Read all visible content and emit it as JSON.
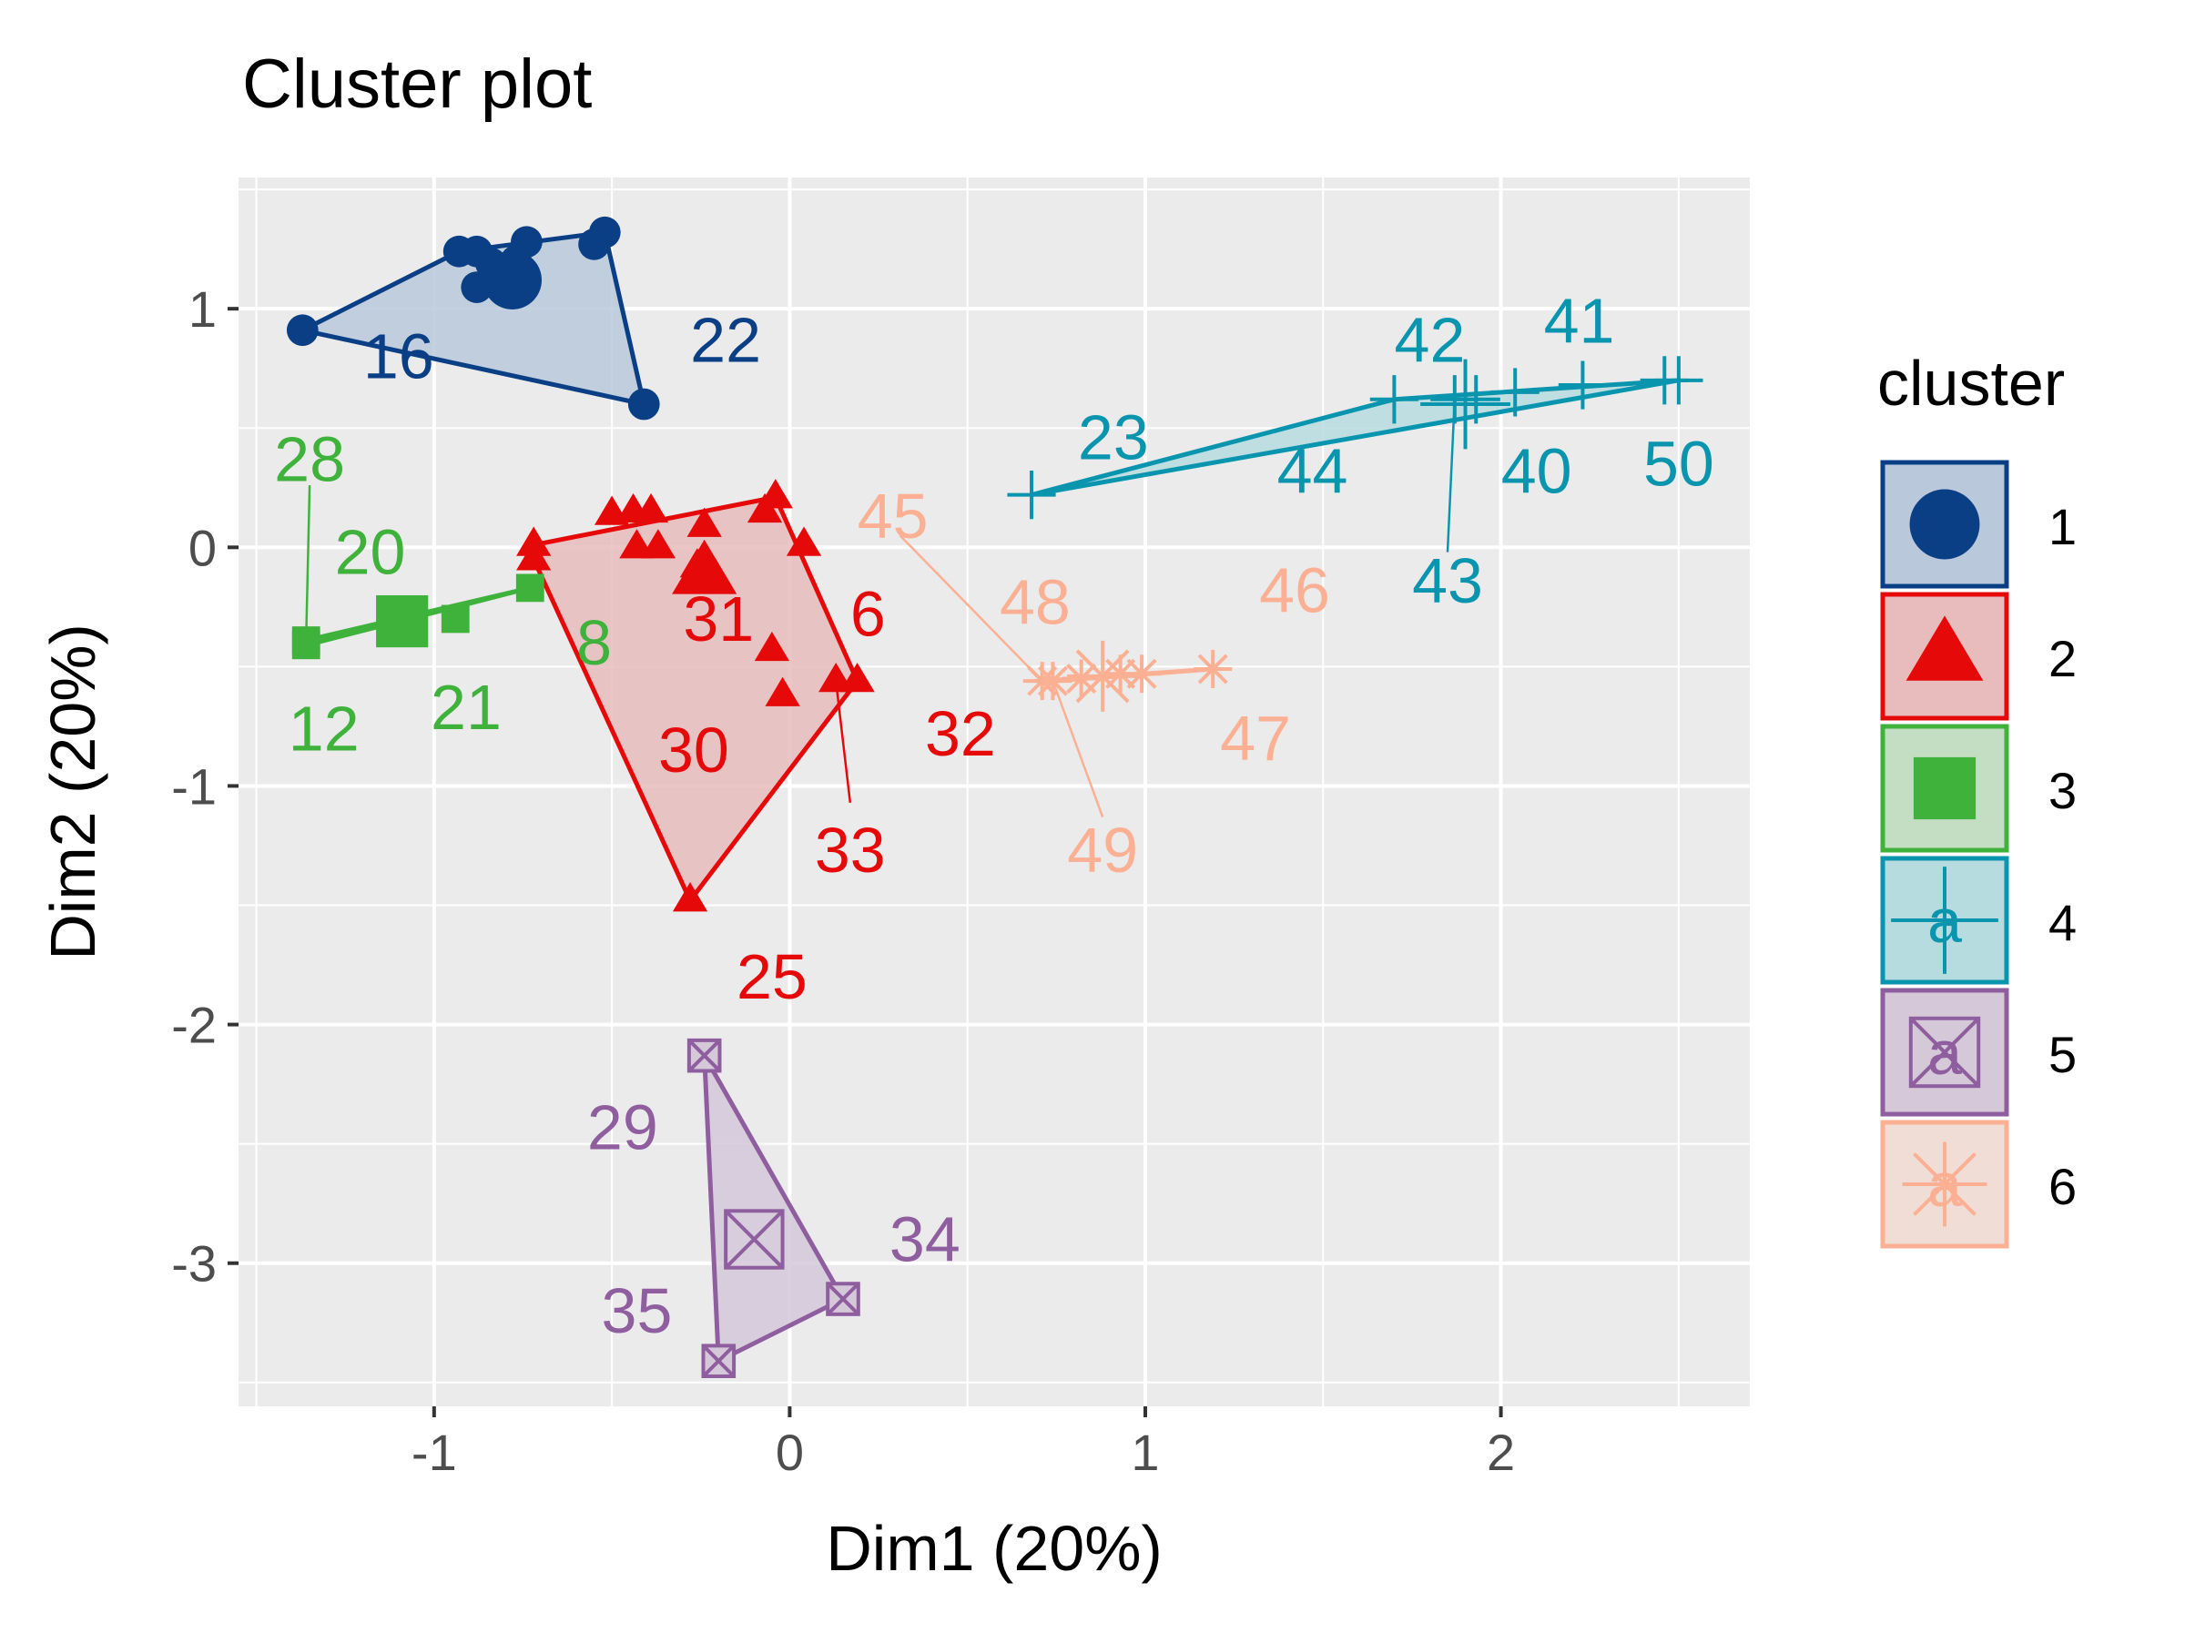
{
  "chart_data": {
    "type": "scatter",
    "title": "Cluster plot",
    "xlabel": "Dim1 (20%)",
    "ylabel": "Dim2 (20%)",
    "xlim": [
      -1.55,
      2.7
    ],
    "ylim": [
      -3.6,
      1.55
    ],
    "x_ticks": [
      -1,
      0,
      1,
      2
    ],
    "x_tick_labels": [
      "-1",
      "0",
      "1",
      "2"
    ],
    "y_ticks": [
      1,
      0,
      -1,
      -2,
      -3
    ],
    "y_tick_labels": [
      "1",
      "0",
      "-1",
      "-2",
      "-3"
    ],
    "grid": true,
    "legend": {
      "title": "cluster",
      "placement": "right",
      "entries": [
        "1",
        "2",
        "3",
        "4",
        "5",
        "6"
      ]
    },
    "series": [
      {
        "name": "1",
        "color": "#0b3f85",
        "fill": "#b9c9db",
        "shape": "circle",
        "points": [
          {
            "x": -1.37,
            "y": 0.91
          },
          {
            "x": -0.93,
            "y": 1.24
          },
          {
            "x": -0.88,
            "y": 1.24
          },
          {
            "x": -0.84,
            "y": 1.19
          },
          {
            "x": -0.88,
            "y": 1.09
          },
          {
            "x": -0.81,
            "y": 1.16
          },
          {
            "x": -0.77,
            "y": 1.2
          },
          {
            "x": -0.74,
            "y": 1.28
          },
          {
            "x": -0.55,
            "y": 1.27
          },
          {
            "x": -0.52,
            "y": 1.32
          },
          {
            "x": -0.41,
            "y": 0.6
          }
        ],
        "hull": [
          [
            -1.37,
            0.91
          ],
          [
            -0.93,
            1.24
          ],
          [
            -0.52,
            1.32
          ],
          [
            -0.41,
            0.6
          ]
        ],
        "centroid": {
          "x": -0.78,
          "y": 1.12
        },
        "labels": [
          {
            "text": "16",
            "x": -1.1,
            "y": 0.8
          },
          {
            "text": "22",
            "x": -0.18,
            "y": 0.87
          }
        ]
      },
      {
        "name": "2",
        "color": "#e6090a",
        "fill": "#e8bcbd",
        "shape": "triangle",
        "points": [
          {
            "x": -0.72,
            "y": 0.01
          },
          {
            "x": -0.72,
            "y": -0.05
          },
          {
            "x": -0.5,
            "y": 0.14
          },
          {
            "x": -0.44,
            "y": 0.15
          },
          {
            "x": -0.39,
            "y": 0.15
          },
          {
            "x": -0.43,
            "y": 0.0
          },
          {
            "x": -0.37,
            "y": 0.0
          },
          {
            "x": -0.24,
            "y": 0.09
          },
          {
            "x": -0.26,
            "y": -0.08
          },
          {
            "x": -0.21,
            "y": -0.12
          },
          {
            "x": -0.04,
            "y": 0.21
          },
          {
            "x": -0.07,
            "y": 0.15
          },
          {
            "x": 0.04,
            "y": 0.01
          },
          {
            "x": -0.05,
            "y": -0.43
          },
          {
            "x": -0.02,
            "y": -0.62
          },
          {
            "x": 0.13,
            "y": -0.56
          },
          {
            "x": 0.19,
            "y": -0.56
          },
          {
            "x": -0.28,
            "y": -1.48
          }
        ],
        "hull": [
          [
            -0.72,
            0.01
          ],
          [
            -0.04,
            0.21
          ],
          [
            0.19,
            -0.56
          ],
          [
            -0.28,
            -1.48
          ],
          [
            -0.72,
            -0.05
          ]
        ],
        "centroid": {
          "x": -0.24,
          "y": -0.11
        },
        "labels": [
          {
            "text": "31",
            "x": -0.2,
            "y": -0.3
          },
          {
            "text": "6",
            "x": 0.22,
            "y": -0.28
          },
          {
            "text": "30",
            "x": -0.27,
            "y": -0.85
          },
          {
            "text": "32",
            "x": 0.48,
            "y": -0.78
          },
          {
            "text": "33",
            "x": 0.17,
            "y": -1.27
          },
          {
            "text": "25",
            "x": -0.05,
            "y": -1.8
          }
        ]
      },
      {
        "name": "3",
        "color": "#3fb23c",
        "fill": "#c3dec3",
        "shape": "square",
        "points": [
          {
            "x": -1.36,
            "y": -0.39
          },
          {
            "x": -1.36,
            "y": -0.41
          },
          {
            "x": -1.1,
            "y": -0.31
          },
          {
            "x": -1.06,
            "y": -0.32
          },
          {
            "x": -0.94,
            "y": -0.3
          },
          {
            "x": -0.73,
            "y": -0.17
          }
        ],
        "hull": [
          [
            -1.36,
            -0.39
          ],
          [
            -0.73,
            -0.17
          ],
          [
            -1.36,
            -0.41
          ]
        ],
        "centroid": {
          "x": -1.09,
          "y": -0.31
        },
        "labels": [
          {
            "text": "28",
            "x": -1.35,
            "y": 0.37
          },
          {
            "text": "20",
            "x": -1.18,
            "y": -0.02
          },
          {
            "text": "8",
            "x": -0.55,
            "y": -0.4
          },
          {
            "text": "12",
            "x": -1.31,
            "y": -0.76
          },
          {
            "text": "21",
            "x": -0.91,
            "y": -0.67
          }
        ]
      },
      {
        "name": "4",
        "color": "#0a95af",
        "fill": "#b6dce0",
        "shape": "plus",
        "points": [
          {
            "x": 0.68,
            "y": 0.22
          },
          {
            "x": 1.7,
            "y": 0.62
          },
          {
            "x": 1.87,
            "y": 0.62
          },
          {
            "x": 1.93,
            "y": 0.62
          },
          {
            "x": 2.04,
            "y": 0.65
          },
          {
            "x": 2.23,
            "y": 0.68
          },
          {
            "x": 2.46,
            "y": 0.7
          },
          {
            "x": 2.5,
            "y": 0.7
          }
        ],
        "hull": [
          [
            0.68,
            0.22
          ],
          [
            1.7,
            0.62
          ],
          [
            2.5,
            0.7
          ]
        ],
        "centroid": {
          "x": 1.9,
          "y": 0.6
        },
        "labels": [
          {
            "text": "42",
            "x": 1.8,
            "y": 0.87
          },
          {
            "text": "41",
            "x": 2.22,
            "y": 0.95
          },
          {
            "text": "23",
            "x": 0.91,
            "y": 0.46
          },
          {
            "text": "44",
            "x": 1.47,
            "y": 0.32
          },
          {
            "text": "40",
            "x": 2.1,
            "y": 0.32
          },
          {
            "text": "50",
            "x": 2.5,
            "y": 0.35
          },
          {
            "text": "43",
            "x": 1.85,
            "y": -0.14
          }
        ]
      },
      {
        "name": "5",
        "color": "#8e5e9f",
        "fill": "#d5c8d9",
        "shape": "boxed-x",
        "points": [
          {
            "x": -0.24,
            "y": -2.13
          },
          {
            "x": 0.15,
            "y": -3.15
          },
          {
            "x": -0.2,
            "y": -3.41
          }
        ],
        "hull": [
          [
            -0.24,
            -2.13
          ],
          [
            0.15,
            -3.15
          ],
          [
            -0.2,
            -3.41
          ]
        ],
        "centroid": {
          "x": -0.1,
          "y": -2.9
        },
        "labels": [
          {
            "text": "29",
            "x": -0.47,
            "y": -2.43
          },
          {
            "text": "34",
            "x": 0.38,
            "y": -2.9
          },
          {
            "text": "35",
            "x": -0.43,
            "y": -3.2
          }
        ]
      },
      {
        "name": "6",
        "color": "#fbb094",
        "fill": "#f0ddd5",
        "shape": "asterisk",
        "points": [
          {
            "x": 0.71,
            "y": -0.56
          },
          {
            "x": 0.74,
            "y": -0.56
          },
          {
            "x": 0.82,
            "y": -0.55
          },
          {
            "x": 0.93,
            "y": -0.53
          },
          {
            "x": 0.99,
            "y": -0.53
          },
          {
            "x": 1.19,
            "y": -0.51
          }
        ],
        "hull": [
          [
            0.71,
            -0.56
          ],
          [
            1.19,
            -0.51
          ],
          [
            0.74,
            -0.56
          ]
        ],
        "centroid": {
          "x": 0.88,
          "y": -0.54
        },
        "labels": [
          {
            "text": "45",
            "x": 0.29,
            "y": 0.13
          },
          {
            "text": "48",
            "x": 0.69,
            "y": -0.23
          },
          {
            "text": "46",
            "x": 1.42,
            "y": -0.18
          },
          {
            "text": "47",
            "x": 1.31,
            "y": -0.8
          },
          {
            "text": "49",
            "x": 0.88,
            "y": -1.27
          }
        ]
      }
    ]
  }
}
